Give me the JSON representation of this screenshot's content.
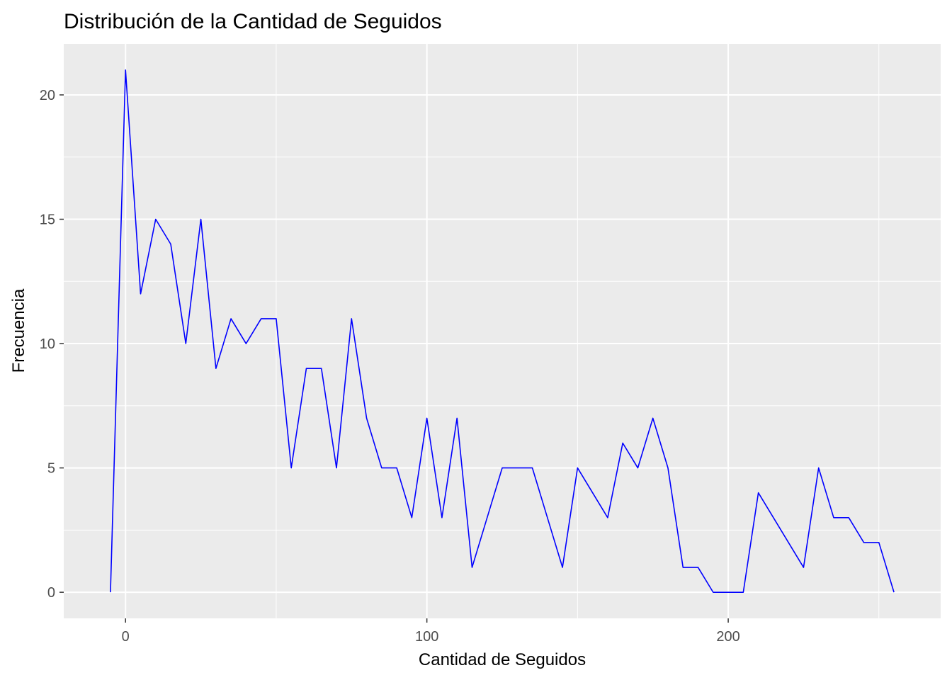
{
  "chart_data": {
    "type": "line",
    "title": "Distribución de la Cantidad de Seguidos",
    "xlabel": "Cantidad de Seguidos",
    "ylabel": "Frecuencia",
    "xlim": [
      -20.5,
      270.5
    ],
    "ylim": [
      -1.05,
      22.05
    ],
    "x_ticks": [
      0,
      100,
      200
    ],
    "y_ticks": [
      0,
      5,
      10,
      15,
      20
    ],
    "x_minor": [
      -50,
      50,
      150,
      250
    ],
    "y_minor": [
      2.5,
      7.5,
      12.5,
      17.5
    ],
    "grid": true,
    "panel_background": "#ebebeb",
    "line_color": "#0000ff",
    "x": [
      -5,
      0,
      5,
      10,
      15,
      20,
      25,
      30,
      35,
      40,
      45,
      50,
      55,
      60,
      65,
      70,
      75,
      80,
      85,
      90,
      95,
      100,
      105,
      110,
      115,
      120,
      125,
      130,
      135,
      140,
      145,
      150,
      155,
      160,
      165,
      170,
      175,
      180,
      185,
      190,
      195,
      200,
      205,
      210,
      215,
      220,
      225,
      230,
      235,
      240,
      245,
      250,
      255
    ],
    "y": [
      0,
      21,
      12,
      15,
      14,
      10,
      15,
      9,
      11,
      10,
      11,
      11,
      5,
      9,
      9,
      5,
      11,
      7,
      5,
      5,
      3,
      7,
      3,
      7,
      1,
      3,
      5,
      5,
      5,
      3,
      1,
      5,
      4,
      3,
      6,
      5,
      7,
      5,
      1,
      1,
      0,
      0,
      0,
      4,
      3,
      2,
      1,
      5,
      3,
      3,
      2,
      2,
      0
    ]
  }
}
